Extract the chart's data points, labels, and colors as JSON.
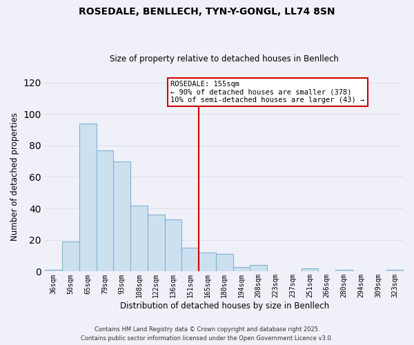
{
  "title": "ROSEDALE, BENLLECH, TYN-Y-GONGL, LL74 8SN",
  "subtitle": "Size of property relative to detached houses in Benllech",
  "xlabel": "Distribution of detached houses by size in Benllech",
  "ylabel": "Number of detached properties",
  "categories": [
    "36sqm",
    "50sqm",
    "65sqm",
    "79sqm",
    "93sqm",
    "108sqm",
    "122sqm",
    "136sqm",
    "151sqm",
    "165sqm",
    "180sqm",
    "194sqm",
    "208sqm",
    "223sqm",
    "237sqm",
    "251sqm",
    "266sqm",
    "280sqm",
    "294sqm",
    "309sqm",
    "323sqm"
  ],
  "values": [
    1,
    19,
    94,
    77,
    70,
    42,
    36,
    33,
    15,
    12,
    11,
    3,
    4,
    0,
    0,
    2,
    0,
    1,
    0,
    0,
    1
  ],
  "bar_color": "#cde0ef",
  "bar_edge_color": "#7fb3d3",
  "vline_color": "#cc0000",
  "ylim": [
    0,
    120
  ],
  "yticks": [
    0,
    20,
    40,
    60,
    80,
    100,
    120
  ],
  "annotation_title": "ROSEDALE: 155sqm",
  "annotation_line1": "← 90% of detached houses are smaller (378)",
  "annotation_line2": "10% of semi-detached houses are larger (43) →",
  "annotation_box_color": "#ffffff",
  "annotation_box_edge_color": "#cc0000",
  "footer_line1": "Contains HM Land Registry data © Crown copyright and database right 2025.",
  "footer_line2": "Contains public sector information licensed under the Open Government Licence v3.0.",
  "background_color": "#f0f0f8",
  "grid_color": "#e0e0ee",
  "vline_index": 8
}
